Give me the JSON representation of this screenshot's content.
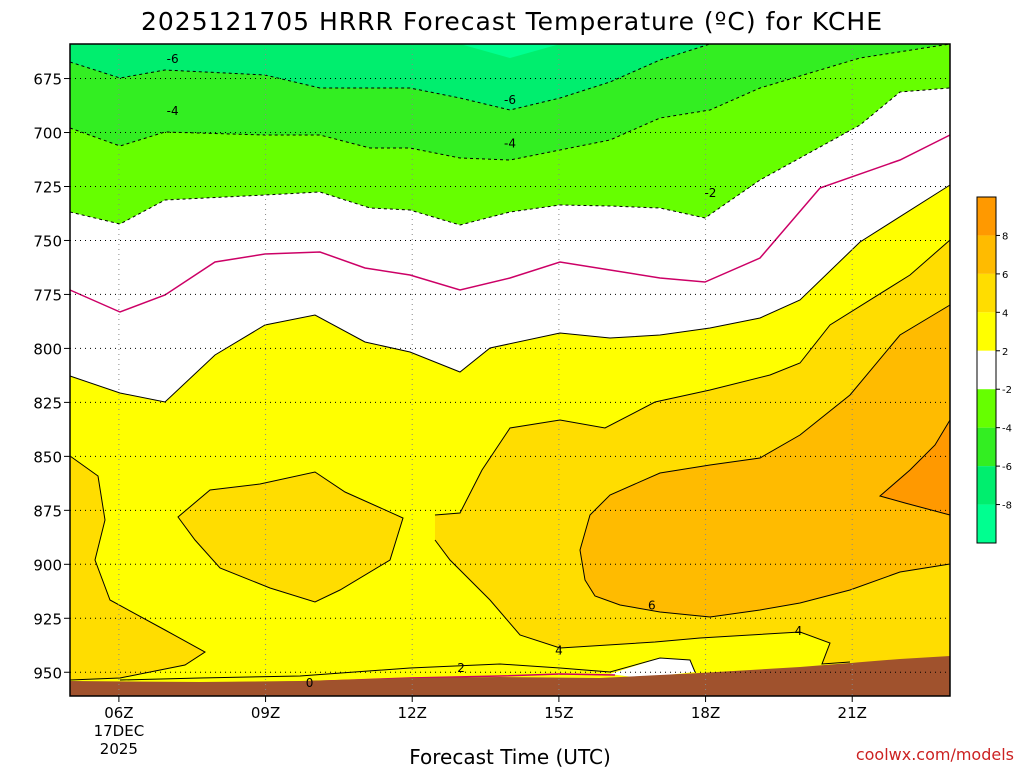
{
  "chart_data": {
    "type": "filled contour (time vs pressure)",
    "title": "2025121705 HRRR Forecast Temperature (ºC) for KCHE",
    "xlabel": "Forecast Time (UTC)",
    "y_axis": {
      "ticks": [
        675,
        700,
        725,
        750,
        775,
        800,
        825,
        850,
        875,
        900,
        925,
        950
      ],
      "range_hPa": [
        961,
        659
      ],
      "inverted": true
    },
    "x_axis": {
      "ticks": [
        {
          "hour": 6,
          "label": "06Z",
          "sublabel": "17DEC",
          "sublabel2": "2025"
        },
        {
          "hour": 9,
          "label": "09Z"
        },
        {
          "hour": 12,
          "label": "12Z"
        },
        {
          "hour": 15,
          "label": "15Z"
        },
        {
          "hour": 18,
          "label": "18Z"
        },
        {
          "hour": 21,
          "label": "21Z"
        }
      ],
      "range_hours": [
        5,
        23
      ]
    },
    "contour_labels": [
      {
        "text": "-6",
        "hour": 7.1,
        "hPa": 666
      },
      {
        "text": "-4",
        "hour": 7.1,
        "hPa": 690
      },
      {
        "text": "-6",
        "hour": 14.0,
        "hPa": 685
      },
      {
        "text": "-4",
        "hour": 14.0,
        "hPa": 705
      },
      {
        "text": "-2",
        "hour": 18.1,
        "hPa": 728
      },
      {
        "text": "6",
        "hour": 16.9,
        "hPa": 919
      },
      {
        "text": "4",
        "hour": 15.0,
        "hPa": 940
      },
      {
        "text": "4",
        "hour": 19.9,
        "hPa": 931
      },
      {
        "text": "2",
        "hour": 13.0,
        "hPa": 948
      },
      {
        "text": "0",
        "hour": 9.9,
        "hPa": 955
      }
    ],
    "colorbar": {
      "levels": [
        {
          "label": "-8",
          "color": "#00ff90"
        },
        {
          "label": "-6",
          "color": "#00ee6e"
        },
        {
          "label": "-4",
          "color": "#33ee22"
        },
        {
          "label": "-2",
          "color": "#66ff00"
        },
        {
          "label": "2",
          "color": "#ffffff"
        },
        {
          "label": "4",
          "color": "#ffff00"
        },
        {
          "label": "6",
          "color": "#ffdd00"
        },
        {
          "label": "8",
          "color": "#ffbb00"
        }
      ],
      "top_color": "#ff9900"
    },
    "colors": {
      "minus8": "#00ff90",
      "minus6": "#00ee6e",
      "minus4": "#33ee22",
      "minus2": "#66ff00",
      "near0": "#ffffff",
      "plus2": "#ffff00",
      "plus4": "#ffdd00",
      "plus6": "#ffbb00",
      "plus8": "#ff9900",
      "zero_line": "#cc0066",
      "terrain": "#a0522d"
    }
  },
  "credit": "coolwx.com/models"
}
